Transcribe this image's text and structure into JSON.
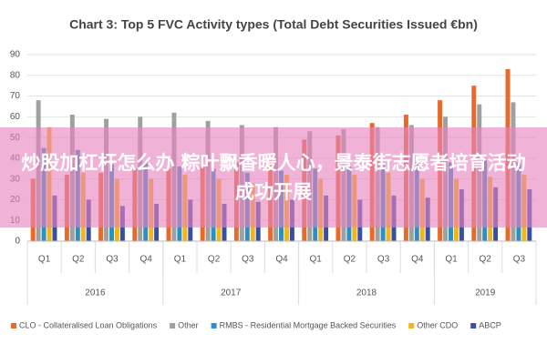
{
  "chart_data": {
    "type": "bar",
    "title": "Chart 3: Top 5 FVC Activity types (Total Debt Securities Issued €bn)",
    "groups": [
      {
        "label": "2016",
        "categories": [
          "Q1",
          "Q2",
          "Q3",
          "Q4"
        ]
      },
      {
        "label": "2017",
        "categories": [
          "Q1",
          "Q2",
          "Q3",
          "Q4"
        ]
      },
      {
        "label": "2018",
        "categories": [
          "Q1",
          "Q2",
          "Q3",
          "Q4"
        ]
      },
      {
        "label": "2019",
        "categories": [
          "Q1",
          "Q2",
          "Q3"
        ]
      }
    ],
    "series": [
      {
        "name": "CLO - Collateralised Loan Obligations",
        "color": "#e8692a",
        "values": [
          30,
          32,
          33,
          35,
          35,
          36,
          38,
          40,
          49,
          51,
          57,
          61,
          68,
          75,
          83
        ]
      },
      {
        "name": "Other",
        "color": "#a0a0a0",
        "values": [
          68,
          61,
          59,
          60,
          62,
          58,
          56,
          55,
          53,
          54,
          55,
          56,
          60,
          66,
          67
        ]
      },
      {
        "name": "RMBS - Residential Mortgage Backed Securities",
        "color": "#2e8fc0",
        "values": [
          45,
          44,
          37,
          38,
          36,
          35,
          33,
          34,
          35,
          36,
          37,
          38,
          38,
          39,
          38
        ]
      },
      {
        "name": "Other CDO",
        "color": "#f2b51c",
        "values": [
          55,
          33,
          30,
          30,
          32,
          30,
          28,
          32,
          30,
          32,
          33,
          30,
          30,
          31,
          32
        ]
      },
      {
        "name": "ABCP",
        "color": "#3a4fa0",
        "values": [
          22,
          20,
          17,
          18,
          20,
          18,
          19,
          20,
          22,
          20,
          22,
          21,
          25,
          26,
          25
        ]
      }
    ],
    "ylim": [
      0,
      90
    ],
    "yticks": [
      0,
      10,
      20,
      30,
      40,
      50,
      60,
      70,
      80,
      90
    ],
    "grid": true,
    "legend": "bottom"
  },
  "banner": {
    "text": "炒股加杠杆怎么办 粽叶飘香暖人心，景泰街志愿者培育活动成功开展"
  }
}
